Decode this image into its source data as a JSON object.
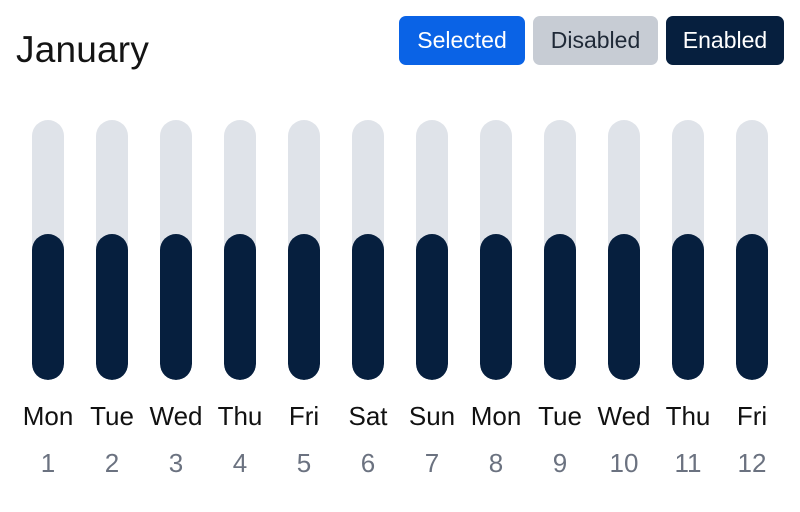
{
  "title": "January",
  "buttons": {
    "selected": "Selected",
    "disabled": "Disabled",
    "enabled": "Enabled"
  },
  "colors": {
    "accent": "#0a63e6",
    "bar_fill": "#061f3e",
    "bar_track": "#dfe3e9",
    "disabled_bg": "#c7ccd4"
  },
  "days": [
    {
      "day": "Mon",
      "date": "1",
      "level": 0.56
    },
    {
      "day": "Tue",
      "date": "2",
      "level": 0.56
    },
    {
      "day": "Wed",
      "date": "3",
      "level": 0.56
    },
    {
      "day": "Thu",
      "date": "4",
      "level": 0.56
    },
    {
      "day": "Fri",
      "date": "5",
      "level": 0.56
    },
    {
      "day": "Sat",
      "date": "6",
      "level": 0.56
    },
    {
      "day": "Sun",
      "date": "7",
      "level": 0.56
    },
    {
      "day": "Mon",
      "date": "8",
      "level": 0.56
    },
    {
      "day": "Tue",
      "date": "9",
      "level": 0.56
    },
    {
      "day": "Wed",
      "date": "10",
      "level": 0.56
    },
    {
      "day": "Thu",
      "date": "11",
      "level": 0.56
    },
    {
      "day": "Fri",
      "date": "12",
      "level": 0.56
    }
  ]
}
